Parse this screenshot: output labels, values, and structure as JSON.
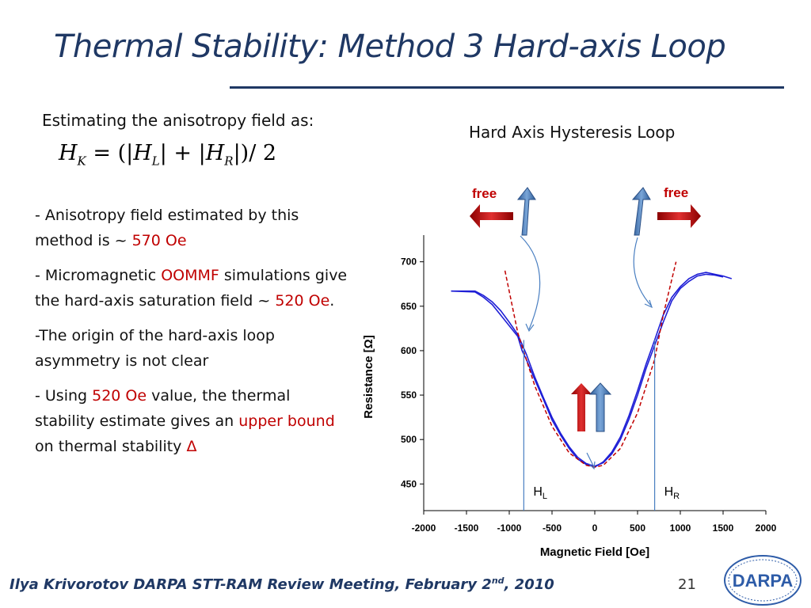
{
  "slide": {
    "title": "Thermal Stability: Method 3 Hard-axis Loop",
    "intro": "Estimating the anisotropy field as:",
    "formula": {
      "lhs": "H",
      "lhs_sub": "K",
      "h": "H",
      "l_sub": "L",
      "r_sub": "R",
      "eq": "=",
      "open": "(|",
      "mid": "| + |",
      "close": "|)/ 2"
    },
    "bullets": [
      {
        "pre": "- Anisotropy field estimated by this method is ~ ",
        "hl": "570 Oe",
        "post": ""
      },
      {
        "pre": "- Micromagnetic ",
        "hl": "OOMMF",
        "post": " simulations give the hard-axis saturation field ~ ",
        "hl2": "520 Oe",
        "post2": "."
      },
      {
        "pre": "-The origin of the hard-axis loop asymmetry is not clear"
      },
      {
        "pre": "- Using ",
        "hl": "520 Oe",
        "post": " value, the thermal stability estimate gives an ",
        "hl2": "upper bound",
        "post2": " on thermal stability  ",
        "symbol": "Δ"
      }
    ],
    "chart_title": "Hard Axis Hysteresis Loop",
    "footer": {
      "text": "Ilya Krivorotov  DARPA STT-RAM Review Meeting, February 2",
      "sup": "nd",
      "tail": ", 2010"
    },
    "page_number": "21",
    "logo_text": "DARPA"
  },
  "chart_data": {
    "type": "line",
    "xlabel": "Magnetic Field [Oe]",
    "ylabel": "Resistance [Ω]",
    "xlim": [
      -2000,
      2000
    ],
    "ylim": [
      420,
      730
    ],
    "x_ticks": [
      -2000,
      -1500,
      -1000,
      -500,
      0,
      500,
      1000,
      1500,
      2000
    ],
    "y_ticks": [
      450,
      500,
      550,
      600,
      650,
      700
    ],
    "series": [
      {
        "color": "#1f1fd6",
        "x": [
          -1680,
          -1400,
          -1300,
          -1200,
          -1100,
          -1000,
          -900,
          -850,
          -800,
          -700,
          -600,
          -500,
          -400,
          -300,
          -200,
          -100,
          0,
          100,
          200,
          300,
          400,
          500,
          600,
          700,
          800,
          900,
          1000,
          1100,
          1200,
          1300,
          1400,
          1500,
          1600
        ],
        "y": [
          667,
          666,
          660,
          652,
          640,
          628,
          616,
          600,
          590,
          567,
          545,
          522,
          505,
          490,
          478,
          472,
          469,
          475,
          486,
          503,
          527,
          555,
          585,
          612,
          640,
          660,
          672,
          681,
          686,
          688,
          686,
          684,
          681
        ]
      },
      {
        "color": "#1f1fd6",
        "x": [
          -1680,
          -1400,
          -1300,
          -1200,
          -1100,
          -1000,
          -900,
          -800,
          -700,
          -600,
          -500,
          -400,
          -300,
          -200,
          -100,
          0,
          100,
          200,
          300,
          400,
          500,
          600,
          700,
          800,
          900,
          1000,
          1100,
          1200,
          1300,
          1400,
          1500
        ],
        "y": [
          667,
          667,
          662,
          655,
          645,
          632,
          618,
          596,
          570,
          547,
          525,
          507,
          492,
          480,
          473,
          470,
          474,
          484,
          500,
          523,
          550,
          580,
          606,
          632,
          656,
          670,
          678,
          684,
          686,
          685,
          683
        ]
      },
      {
        "color": "#c00000",
        "dashed": true,
        "x": [
          -1050,
          -900,
          -700,
          -500,
          -300,
          -100,
          0,
          100,
          300,
          500,
          700,
          800,
          950
        ],
        "y": [
          690,
          620,
          560,
          515,
          485,
          471,
          469,
          471,
          490,
          530,
          590,
          640,
          700
        ]
      }
    ],
    "annotations": [
      {
        "text": "H",
        "sub": "L",
        "x": -830
      },
      {
        "text": "H",
        "sub": "R",
        "x": 700
      },
      {
        "text": "free",
        "side": "left"
      },
      {
        "text": "free",
        "side": "right"
      }
    ]
  }
}
